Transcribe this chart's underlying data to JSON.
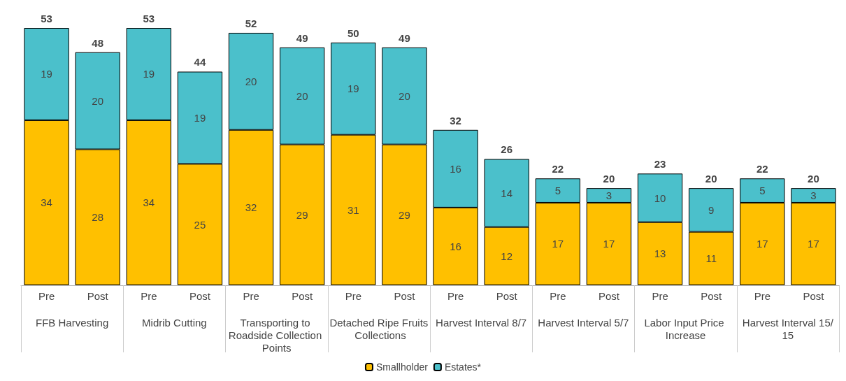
{
  "chart_data": {
    "type": "bar",
    "stacked": true,
    "tick_labels": "x",
    "data_labels": true,
    "legend": "bottom",
    "categories": [
      "Pre",
      "Post",
      "Pre",
      "Post",
      "Pre",
      "Post",
      "Pre",
      "Post",
      "Pre",
      "Post",
      "Pre",
      "Post",
      "Pre",
      "Post",
      "Pre",
      "Post"
    ],
    "annotations": [
      "FFB Harvesting",
      "Midrib Cutting",
      "Transporting to Roadside Collection Points",
      "Detached Ripe Fruits Collections",
      "Harvest Interval 8/7",
      "Harvest Interval 5/7",
      "Labor Input Price Increase",
      "Harvest Interval 15/15"
    ],
    "series": [
      {
        "name": "Smallholder",
        "color": "#ffc000",
        "values": [
          34,
          28,
          34,
          25,
          32,
          29,
          31,
          29,
          16,
          12,
          17,
          17,
          13,
          11,
          17,
          17
        ]
      },
      {
        "name": "Estates*",
        "color": "#4bc0cb",
        "values": [
          19,
          20,
          19,
          19,
          20,
          20,
          19,
          20,
          16,
          14,
          5,
          3,
          10,
          9,
          5,
          3
        ]
      }
    ],
    "totals": [
      "53",
      "48",
      "53",
      "44",
      "52",
      "49",
      "50",
      "49",
      "32",
      "26",
      "22",
      "20",
      "23",
      "20",
      "22",
      "20"
    ]
  }
}
